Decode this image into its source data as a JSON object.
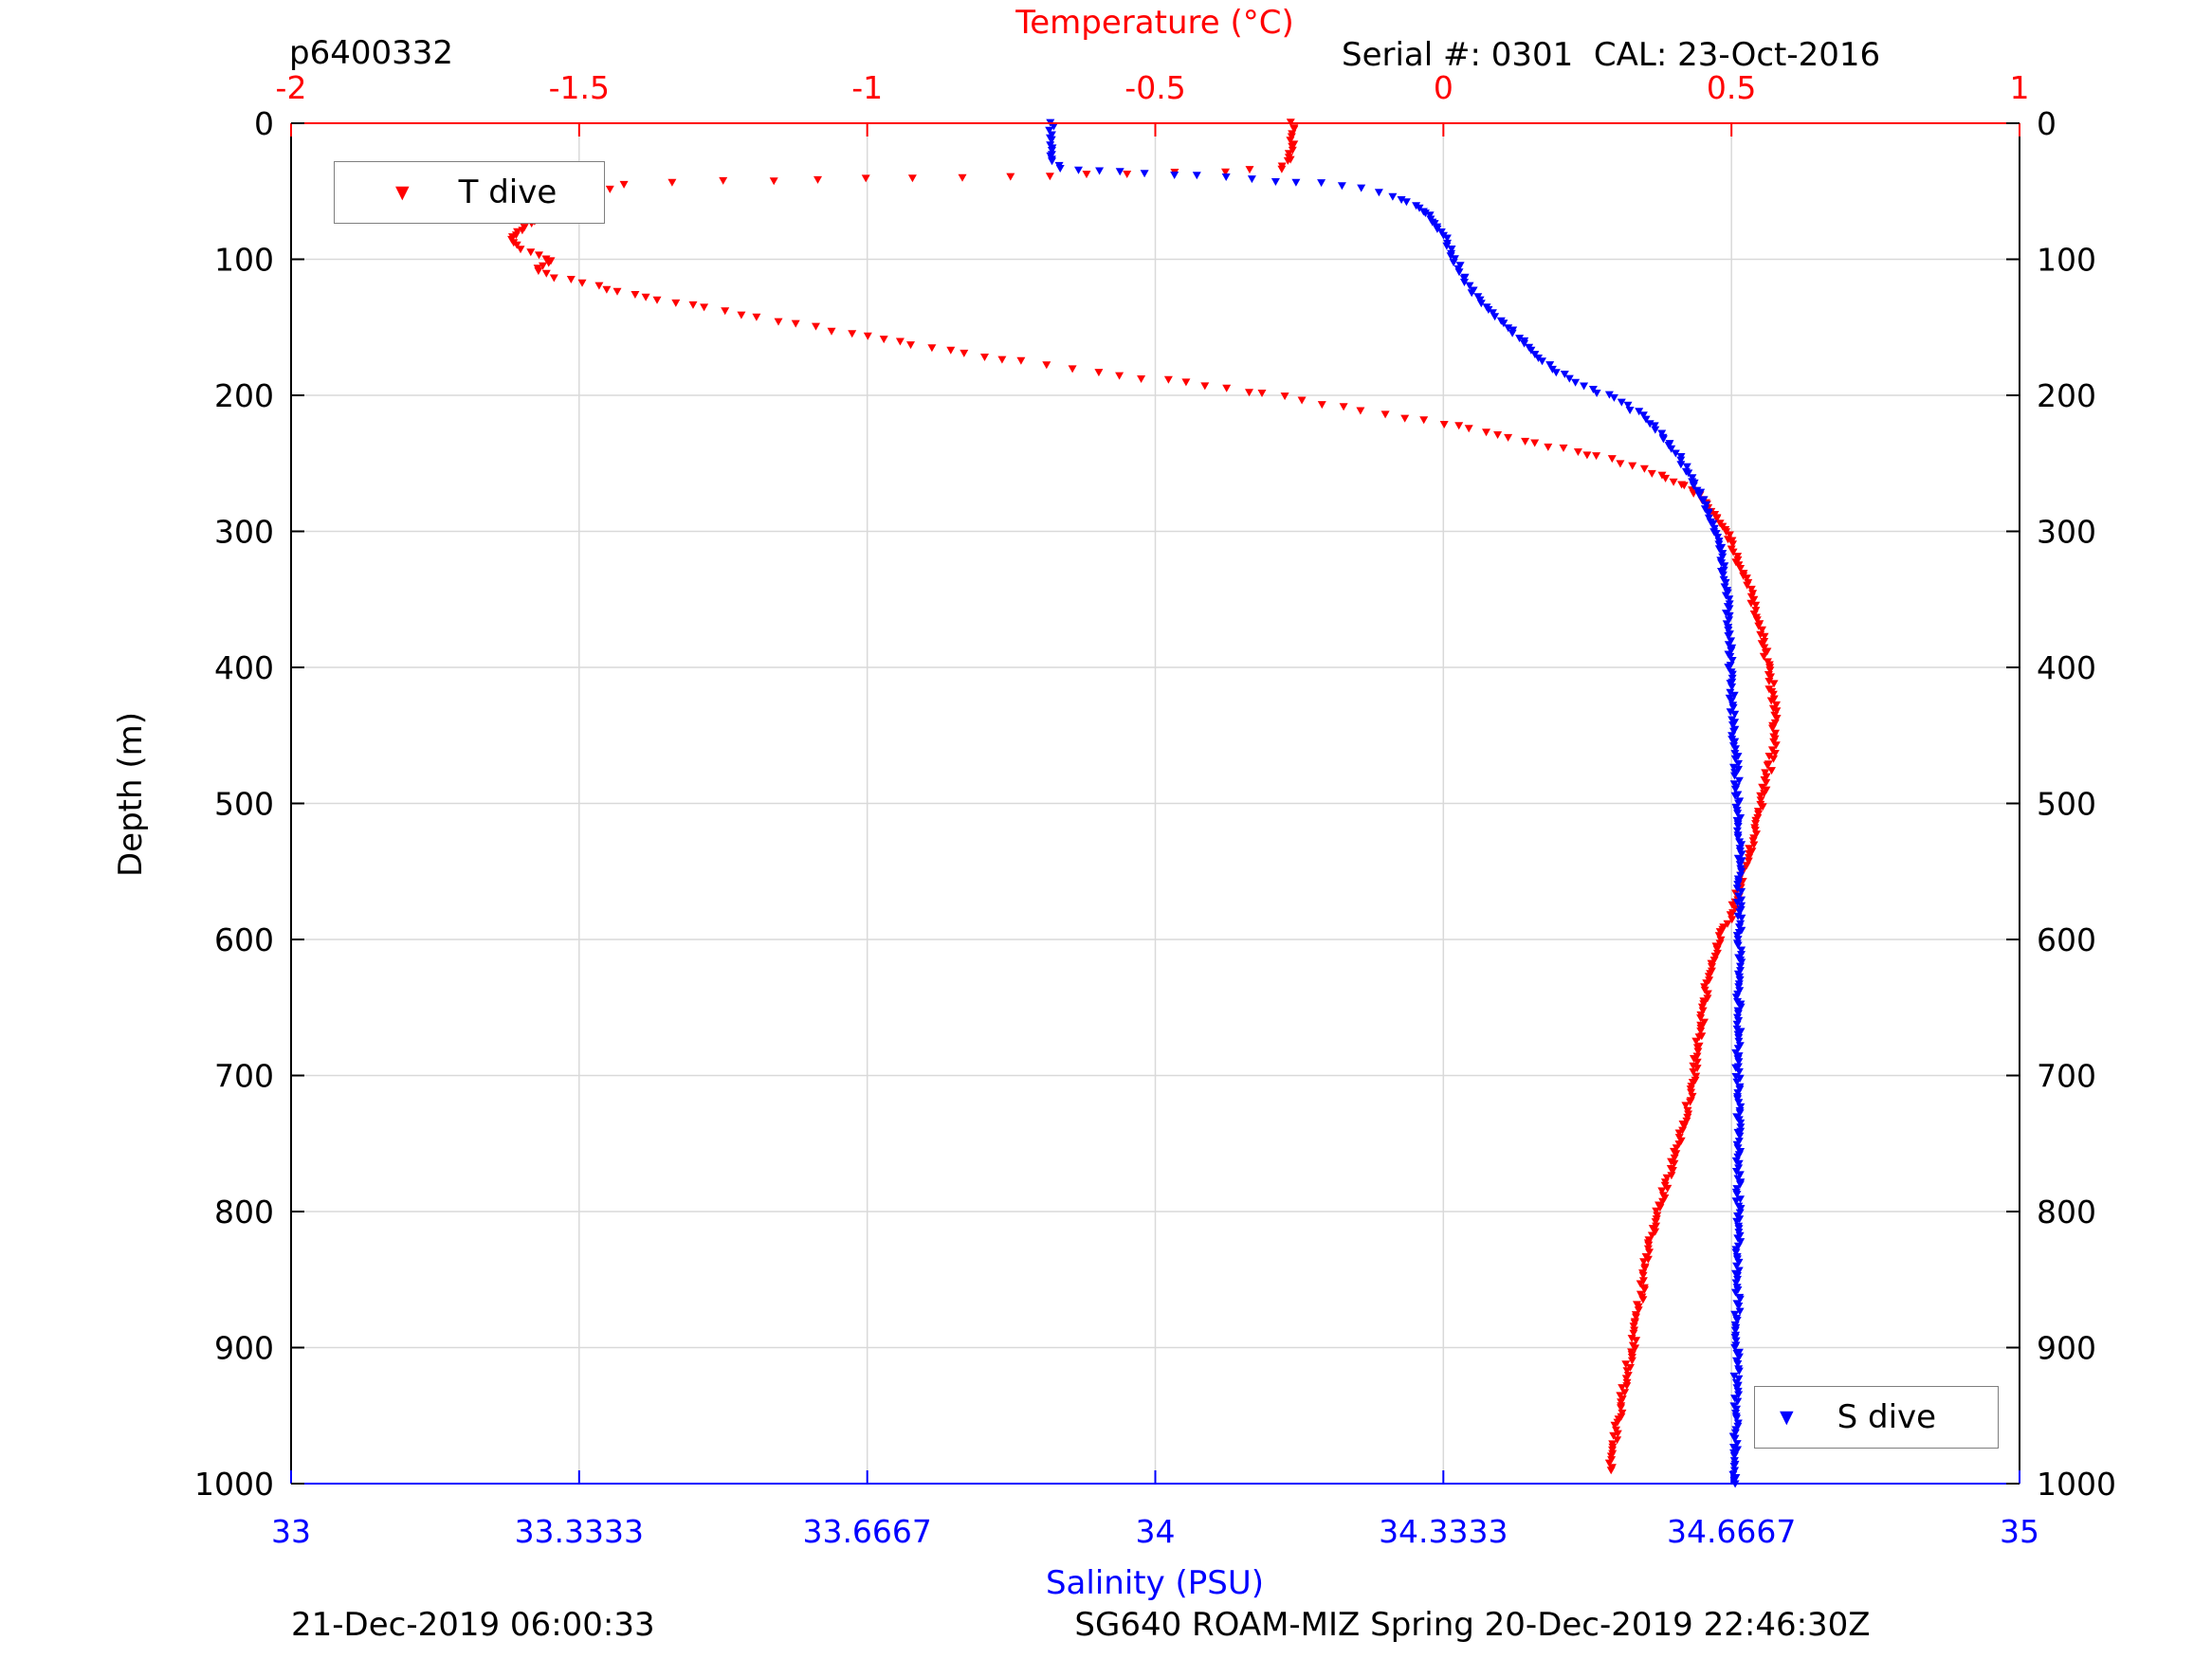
{
  "header": {
    "dive_id": "p6400332",
    "serial_cal": "Serial #: 0301  CAL: 23-Oct-2016"
  },
  "footer": {
    "left": "21-Dec-2019 06:00:33",
    "center": "SG640 ROAM-MIZ Spring 20-Dec-2019 22:46:30Z"
  },
  "colors": {
    "temperature": "#ff0000",
    "salinity": "#0000ff",
    "grid": "#d9d9d9",
    "axis_black": "#000000",
    "legend_border": "#7f7f7f"
  },
  "chart_data": {
    "type": "scatter",
    "title": "",
    "grid": true,
    "axes": {
      "x_top": {
        "label": "Temperature (°C)",
        "range": [
          -2,
          1
        ],
        "ticks": [
          -2,
          -1.5,
          -1,
          -0.5,
          0,
          0.5,
          1
        ],
        "tick_labels": [
          "-2",
          "-1.5",
          "-1",
          "-0.5",
          "0",
          "0.5",
          "1"
        ],
        "color": "#ff0000"
      },
      "x_bottom": {
        "label": "Salinity (PSU)",
        "range": [
          33,
          35
        ],
        "ticks": [
          33,
          33.3333,
          33.6667,
          34,
          34.3333,
          34.6667,
          35
        ],
        "tick_labels": [
          "33",
          "33.3333",
          "33.6667",
          "34",
          "34.3333",
          "34.6667",
          "35"
        ],
        "color": "#0000ff"
      },
      "y": {
        "label": "Depth (m)",
        "range": [
          0,
          1000
        ],
        "reversed": true,
        "ticks": [
          0,
          100,
          200,
          300,
          400,
          500,
          600,
          700,
          800,
          900,
          1000
        ],
        "tick_labels": [
          "0",
          "100",
          "200",
          "300",
          "400",
          "500",
          "600",
          "700",
          "800",
          "900",
          "1000"
        ],
        "color": "#000000"
      }
    },
    "legend": {
      "t_dive_label": "T dive",
      "s_dive_label": "S dive",
      "marker_glyph": "▼"
    },
    "series": [
      {
        "name": "T dive",
        "axis": "x_top",
        "color": "#ff0000",
        "marker": "triangle-down",
        "depth_step": 2.5,
        "value_step": 0.09,
        "jitter_value": 0.005,
        "jitter_depth": 0.9,
        "profile_depth_value": [
          [
            0,
            -0.26
          ],
          [
            10,
            -0.265
          ],
          [
            20,
            -0.262
          ],
          [
            28,
            -0.27
          ],
          [
            33,
            -0.285
          ],
          [
            35,
            -0.38
          ],
          [
            37,
            -0.55
          ],
          [
            39,
            -0.75
          ],
          [
            41,
            -1.0
          ],
          [
            43,
            -1.25
          ],
          [
            45,
            -1.42
          ],
          [
            50,
            -1.47
          ],
          [
            56,
            -1.51
          ],
          [
            62,
            -1.54
          ],
          [
            68,
            -1.56
          ],
          [
            74,
            -1.585
          ],
          [
            80,
            -1.61
          ],
          [
            86,
            -1.62
          ],
          [
            92,
            -1.6
          ],
          [
            97,
            -1.565
          ],
          [
            101,
            -1.55
          ],
          [
            105,
            -1.565
          ],
          [
            109,
            -1.575
          ],
          [
            113,
            -1.54
          ],
          [
            118,
            -1.49
          ],
          [
            124,
            -1.43
          ],
          [
            130,
            -1.36
          ],
          [
            136,
            -1.28
          ],
          [
            143,
            -1.19
          ],
          [
            150,
            -1.09
          ],
          [
            157,
            -1.0
          ],
          [
            163,
            -0.92
          ],
          [
            169,
            -0.83
          ],
          [
            175,
            -0.73
          ],
          [
            180,
            -0.64
          ],
          [
            185,
            -0.56
          ],
          [
            189,
            -0.48
          ],
          [
            193,
            -0.41
          ],
          [
            197,
            -0.34
          ],
          [
            201,
            -0.28
          ],
          [
            206,
            -0.21
          ],
          [
            211,
            -0.14
          ],
          [
            216,
            -0.07
          ],
          [
            221,
            0.0
          ],
          [
            227,
            0.07
          ],
          [
            233,
            0.14
          ],
          [
            239,
            0.21
          ],
          [
            245,
            0.27
          ],
          [
            252,
            0.33
          ],
          [
            259,
            0.38
          ],
          [
            267,
            0.42
          ],
          [
            276,
            0.45
          ],
          [
            287,
            0.47
          ],
          [
            300,
            0.49
          ],
          [
            315,
            0.505
          ],
          [
            330,
            0.52
          ],
          [
            345,
            0.532
          ],
          [
            360,
            0.543
          ],
          [
            375,
            0.552
          ],
          [
            390,
            0.56
          ],
          [
            405,
            0.567
          ],
          [
            420,
            0.572
          ],
          [
            435,
            0.577
          ],
          [
            450,
            0.576
          ],
          [
            465,
            0.57
          ],
          [
            480,
            0.562
          ],
          [
            495,
            0.554
          ],
          [
            510,
            0.546
          ],
          [
            525,
            0.537
          ],
          [
            540,
            0.528
          ],
          [
            555,
            0.518
          ],
          [
            570,
            0.508
          ],
          [
            585,
            0.497
          ],
          [
            600,
            0.478
          ],
          [
            615,
            0.468
          ],
          [
            630,
            0.46
          ],
          [
            645,
            0.453
          ],
          [
            660,
            0.448
          ],
          [
            675,
            0.443
          ],
          [
            690,
            0.438
          ],
          [
            705,
            0.433
          ],
          [
            720,
            0.425
          ],
          [
            735,
            0.417
          ],
          [
            750,
            0.408
          ],
          [
            765,
            0.398
          ],
          [
            780,
            0.388
          ],
          [
            795,
            0.376
          ],
          [
            810,
            0.366
          ],
          [
            825,
            0.358
          ],
          [
            840,
            0.351
          ],
          [
            855,
            0.345
          ],
          [
            870,
            0.34
          ],
          [
            885,
            0.334
          ],
          [
            900,
            0.328
          ],
          [
            915,
            0.32
          ],
          [
            930,
            0.313
          ],
          [
            945,
            0.307
          ],
          [
            960,
            0.301
          ],
          [
            975,
            0.295
          ],
          [
            990,
            0.291
          ]
        ]
      },
      {
        "name": "S dive",
        "axis": "x_bottom",
        "color": "#0000ff",
        "marker": "triangle-down",
        "depth_step": 2.5,
        "value_step": 0.035,
        "jitter_value": 0.003,
        "jitter_depth": 0.9,
        "profile_depth_value": [
          [
            0,
            33.88
          ],
          [
            10,
            33.879
          ],
          [
            20,
            33.881
          ],
          [
            28,
            33.882
          ],
          [
            33,
            33.89
          ],
          [
            36,
            33.96
          ],
          [
            38,
            34.02
          ],
          [
            40,
            34.08
          ],
          [
            42,
            34.14
          ],
          [
            44,
            34.19
          ],
          [
            48,
            34.24
          ],
          [
            53,
            34.275
          ],
          [
            60,
            34.3
          ],
          [
            68,
            34.316
          ],
          [
            76,
            34.327
          ],
          [
            85,
            34.335
          ],
          [
            95,
            34.342
          ],
          [
            105,
            34.35
          ],
          [
            115,
            34.358
          ],
          [
            125,
            34.368
          ],
          [
            135,
            34.382
          ],
          [
            145,
            34.398
          ],
          [
            155,
            34.416
          ],
          [
            165,
            34.432
          ],
          [
            175,
            34.45
          ],
          [
            185,
            34.472
          ],
          [
            195,
            34.505
          ],
          [
            205,
            34.54
          ],
          [
            215,
            34.563
          ],
          [
            225,
            34.58
          ],
          [
            235,
            34.594
          ],
          [
            245,
            34.606
          ],
          [
            255,
            34.616
          ],
          [
            265,
            34.624
          ],
          [
            278,
            34.634
          ],
          [
            290,
            34.642
          ],
          [
            302,
            34.649
          ],
          [
            318,
            34.655
          ],
          [
            335,
            34.659
          ],
          [
            355,
            34.662
          ],
          [
            375,
            34.664
          ],
          [
            400,
            34.666
          ],
          [
            430,
            34.668
          ],
          [
            460,
            34.671
          ],
          [
            500,
            34.674
          ],
          [
            550,
            34.676
          ],
          [
            600,
            34.676
          ],
          [
            650,
            34.675
          ],
          [
            700,
            34.674
          ],
          [
            750,
            34.675
          ],
          [
            800,
            34.675
          ],
          [
            850,
            34.674
          ],
          [
            900,
            34.673
          ],
          [
            950,
            34.672
          ],
          [
            1000,
            34.671
          ]
        ]
      }
    ]
  }
}
